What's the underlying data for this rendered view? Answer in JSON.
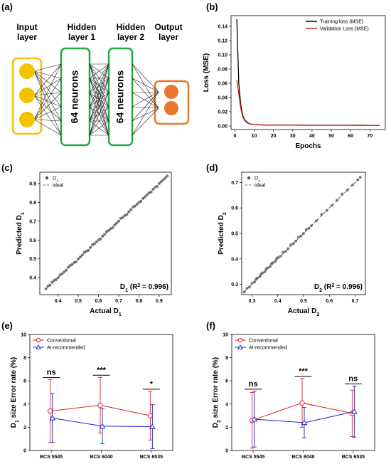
{
  "panels": {
    "a": "(a)",
    "b": "(b)",
    "c": "(c)",
    "d": "(d)",
    "e": "(e)",
    "f": "(f)"
  },
  "network": {
    "input_title": [
      "Input",
      "layer"
    ],
    "hidden1_title": [
      "Hidden",
      "layer 1"
    ],
    "hidden2_title": [
      "Hidden",
      "layer 2"
    ],
    "output_title": [
      "Output",
      "layer"
    ],
    "hidden1_neurons": "64 neurons",
    "hidden2_neurons": "64 neurons",
    "colors": {
      "input": "#f5c200",
      "hidden": "#22aa44",
      "output": "#e9762b"
    }
  },
  "chart_data": [
    {
      "id": "b",
      "type": "line",
      "xlabel": "Epochs",
      "ylabel": "Loss (MSE)",
      "xlim": [
        -2,
        78
      ],
      "ylim": [
        -0.005,
        0.155
      ],
      "xticks": [
        0,
        10,
        20,
        30,
        40,
        50,
        60,
        70
      ],
      "yticks": [
        0.0,
        0.02,
        0.04,
        0.06,
        0.08,
        0.1,
        0.12,
        0.14
      ],
      "ytick_labels": [
        "0.00",
        "0.02",
        "0.04",
        "0.06",
        "0.08",
        "0.10",
        "0.12",
        "0.14"
      ],
      "legend_position": "top-right",
      "series": [
        {
          "name": "Training loss (MSE)",
          "color": "#000000",
          "x": [
            1,
            2,
            3,
            4,
            5,
            6,
            7,
            8,
            9,
            10,
            12,
            15,
            20,
            30,
            40,
            50,
            60,
            70,
            75
          ],
          "y": [
            0.15,
            0.06,
            0.03,
            0.015,
            0.009,
            0.006,
            0.004,
            0.003,
            0.0025,
            0.002,
            0.0017,
            0.0014,
            0.0012,
            0.0011,
            0.001,
            0.001,
            0.001,
            0.0009,
            0.0009
          ]
        },
        {
          "name": "Validation Loss (MSE)",
          "color": "#cc2222",
          "x": [
            1,
            2,
            3,
            4,
            5,
            6,
            7,
            8,
            9,
            10,
            12,
            15,
            20,
            30,
            40,
            50,
            60,
            70,
            75
          ],
          "y": [
            0.065,
            0.045,
            0.025,
            0.013,
            0.008,
            0.005,
            0.0035,
            0.0028,
            0.0024,
            0.002,
            0.0017,
            0.0014,
            0.0012,
            0.0011,
            0.001,
            0.001,
            0.001,
            0.0009,
            0.0009
          ]
        }
      ]
    },
    {
      "id": "c",
      "type": "scatter",
      "xlabel": "Actual D1",
      "ylabel": "Predicted D1",
      "xlim": [
        0.31,
        0.96
      ],
      "ylim": [
        0.31,
        0.96
      ],
      "xticks": [
        0.4,
        0.5,
        0.6,
        0.7,
        0.8,
        0.9
      ],
      "yticks": [
        0.4,
        0.5,
        0.6,
        0.7,
        0.8,
        0.9
      ],
      "xtick_labels": [
        "0.4",
        "0.5",
        "0.6",
        "0.7",
        "0.8",
        "0.9"
      ],
      "ytick_labels": [
        "0.4",
        "0.5",
        "0.6",
        "0.7",
        "0.8",
        "0.9"
      ],
      "legend": [
        "D1",
        "Ideal"
      ],
      "annotation": "D1 (R2 = 0.996)",
      "ideal_range": [
        0.34,
        0.94
      ],
      "points": {
        "x": [
          0.34,
          0.35,
          0.36,
          0.37,
          0.38,
          0.39,
          0.4,
          0.41,
          0.42,
          0.43,
          0.44,
          0.45,
          0.46,
          0.47,
          0.48,
          0.49,
          0.5,
          0.51,
          0.52,
          0.53,
          0.54,
          0.55,
          0.56,
          0.57,
          0.58,
          0.59,
          0.6,
          0.61,
          0.62,
          0.63,
          0.64,
          0.65,
          0.66,
          0.67,
          0.68,
          0.69,
          0.7,
          0.71,
          0.72,
          0.73,
          0.74,
          0.75,
          0.76,
          0.77,
          0.78,
          0.79,
          0.8,
          0.81,
          0.82,
          0.83,
          0.84,
          0.85,
          0.86,
          0.87,
          0.88,
          0.89,
          0.9,
          0.91,
          0.92,
          0.93,
          0.94
        ],
        "y": [
          0.34,
          0.355,
          0.36,
          0.375,
          0.385,
          0.39,
          0.4,
          0.415,
          0.42,
          0.43,
          0.44,
          0.455,
          0.465,
          0.47,
          0.48,
          0.485,
          0.5,
          0.51,
          0.52,
          0.535,
          0.54,
          0.545,
          0.56,
          0.575,
          0.58,
          0.59,
          0.6,
          0.605,
          0.62,
          0.63,
          0.645,
          0.65,
          0.66,
          0.665,
          0.68,
          0.69,
          0.7,
          0.715,
          0.72,
          0.73,
          0.735,
          0.75,
          0.76,
          0.775,
          0.78,
          0.79,
          0.8,
          0.805,
          0.82,
          0.83,
          0.84,
          0.85,
          0.855,
          0.87,
          0.88,
          0.885,
          0.9,
          0.91,
          0.92,
          0.93,
          0.94
        ]
      }
    },
    {
      "id": "d",
      "type": "scatter",
      "xlabel": "Actual D2",
      "ylabel": "Predicted D2",
      "xlim": [
        0.26,
        0.74
      ],
      "ylim": [
        0.26,
        0.74
      ],
      "xticks": [
        0.3,
        0.4,
        0.5,
        0.6,
        0.7
      ],
      "yticks": [
        0.3,
        0.4,
        0.5,
        0.6,
        0.7
      ],
      "xtick_labels": [
        "0.3",
        "0.4",
        "0.5",
        "0.6",
        "0.7"
      ],
      "ytick_labels": [
        "0.3",
        "0.4",
        "0.5",
        "0.6",
        "0.7"
      ],
      "legend": [
        "D2",
        "Ideal"
      ],
      "annotation": "D2 (R2 = 0.996)",
      "ideal_range": [
        0.27,
        0.72
      ],
      "points": {
        "x": [
          0.27,
          0.28,
          0.29,
          0.3,
          0.31,
          0.315,
          0.32,
          0.33,
          0.335,
          0.34,
          0.35,
          0.355,
          0.36,
          0.37,
          0.375,
          0.38,
          0.39,
          0.395,
          0.4,
          0.41,
          0.42,
          0.43,
          0.44,
          0.45,
          0.46,
          0.47,
          0.48,
          0.49,
          0.5,
          0.51,
          0.52,
          0.53,
          0.55,
          0.57,
          0.59,
          0.61,
          0.63,
          0.65,
          0.67,
          0.69,
          0.71,
          0.72
        ],
        "y": [
          0.27,
          0.285,
          0.29,
          0.305,
          0.31,
          0.32,
          0.325,
          0.33,
          0.34,
          0.345,
          0.35,
          0.36,
          0.365,
          0.37,
          0.38,
          0.385,
          0.39,
          0.4,
          0.405,
          0.41,
          0.425,
          0.43,
          0.44,
          0.455,
          0.46,
          0.47,
          0.485,
          0.49,
          0.5,
          0.515,
          0.52,
          0.53,
          0.55,
          0.575,
          0.59,
          0.61,
          0.63,
          0.655,
          0.67,
          0.69,
          0.71,
          0.72
        ]
      }
    },
    {
      "id": "e",
      "type": "line",
      "ylabel": "D1 size Error rate (%)",
      "categories": [
        "BCS 5545",
        "BCS 6040",
        "BCS 6535"
      ],
      "ylim": [
        0,
        10
      ],
      "yticks": [
        0,
        2,
        4,
        6,
        8,
        10
      ],
      "ytick_labels": [
        "0",
        "2",
        "4",
        "6",
        "8",
        "10"
      ],
      "legend_position": "top-left",
      "significance": [
        "ns",
        "***",
        "*"
      ],
      "series": [
        {
          "name": "Conventional",
          "color": "#dd2222",
          "marker": "circle",
          "values": [
            3.4,
            3.9,
            3.0
          ],
          "err": [
            2.7,
            2.4,
            2.1
          ]
        },
        {
          "name": "AI-recommended",
          "color": "#2222cc",
          "marker": "triangle",
          "values": [
            2.8,
            2.1,
            2.05
          ],
          "err": [
            2.1,
            1.5,
            1.9
          ]
        }
      ]
    },
    {
      "id": "f",
      "type": "line",
      "ylabel": "D2 size Error rate (%)",
      "categories": [
        "BCS 5545",
        "BCS 6040",
        "BCS 6535"
      ],
      "ylim": [
        0,
        10
      ],
      "yticks": [
        0,
        2,
        4,
        6,
        8,
        10
      ],
      "ytick_labels": [
        "0",
        "2",
        "4",
        "6",
        "8",
        "10"
      ],
      "legend_position": "top-left",
      "significance": [
        "ns",
        "***",
        "ns"
      ],
      "series": [
        {
          "name": "Conventional",
          "color": "#dd2222",
          "marker": "circle",
          "values": [
            2.6,
            4.1,
            3.2
          ],
          "err": [
            2.4,
            2.1,
            2.0
          ]
        },
        {
          "name": "AI-recommended",
          "color": "#2222cc",
          "marker": "triangle",
          "values": [
            2.7,
            2.4,
            3.35
          ],
          "err": [
            2.4,
            1.3,
            2.2
          ]
        }
      ]
    }
  ]
}
